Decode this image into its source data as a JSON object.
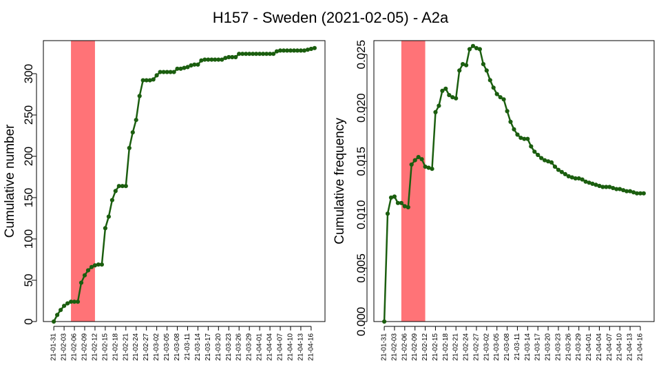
{
  "figure": {
    "title": "H157 - Sweden (2021-02-05) - A2a"
  },
  "colors": {
    "series": "#1b5e0f",
    "highlight": "#ff7377",
    "axis": "#000000",
    "background": "#ffffff"
  },
  "chart_data": [
    {
      "type": "line",
      "title": "",
      "xlabel": "",
      "ylabel": "Cumulative number",
      "grid": false,
      "legend": "none",
      "x_start": "2021-01-31",
      "x_end": "2021-04-17",
      "ylim": [
        0,
        340
      ],
      "yticks": [
        0,
        50,
        100,
        150,
        200,
        250,
        300
      ],
      "ytick_labels": [
        "0",
        "50",
        "100",
        "150",
        "200",
        "250",
        "300"
      ],
      "highlight_range": [
        "2021-02-05",
        "2021-02-12"
      ],
      "xtick_labels": [
        "21-01-31",
        "21-02-03",
        "21-02-06",
        "21-02-09",
        "21-02-12",
        "21-02-15",
        "21-02-18",
        "21-02-21",
        "21-02-24",
        "21-02-27",
        "21-03-02",
        "21-03-05",
        "21-03-08",
        "21-03-11",
        "21-03-14",
        "21-03-17",
        "21-03-20",
        "21-03-23",
        "21-03-26",
        "21-03-29",
        "21-04-01",
        "21-04-04",
        "21-04-07",
        "21-04-10",
        "21-04-13",
        "21-04-16"
      ],
      "series": [
        {
          "name": "",
          "values": [
            [
              "2021-01-31",
              0
            ],
            [
              "2021-02-01",
              8
            ],
            [
              "2021-02-02",
              14
            ],
            [
              "2021-02-03",
              19
            ],
            [
              "2021-02-04",
              22
            ],
            [
              "2021-02-05",
              24
            ],
            [
              "2021-02-06",
              24
            ],
            [
              "2021-02-07",
              24
            ],
            [
              "2021-02-08",
              47
            ],
            [
              "2021-02-09",
              56
            ],
            [
              "2021-02-10",
              62
            ],
            [
              "2021-02-11",
              66
            ],
            [
              "2021-02-12",
              68
            ],
            [
              "2021-02-13",
              69
            ],
            [
              "2021-02-14",
              69
            ],
            [
              "2021-02-15",
              113
            ],
            [
              "2021-02-16",
              127
            ],
            [
              "2021-02-17",
              147
            ],
            [
              "2021-02-18",
              158
            ],
            [
              "2021-02-19",
              164
            ],
            [
              "2021-02-20",
              164
            ],
            [
              "2021-02-21",
              164
            ],
            [
              "2021-02-22",
              210
            ],
            [
              "2021-02-23",
              229
            ],
            [
              "2021-02-24",
              244
            ],
            [
              "2021-02-25",
              273
            ],
            [
              "2021-02-26",
              292
            ],
            [
              "2021-02-27",
              292
            ],
            [
              "2021-02-28",
              292
            ],
            [
              "2021-03-01",
              293
            ],
            [
              "2021-03-02",
              298
            ],
            [
              "2021-03-03",
              302
            ],
            [
              "2021-03-04",
              302
            ],
            [
              "2021-03-05",
              302
            ],
            [
              "2021-03-06",
              302
            ],
            [
              "2021-03-07",
              302
            ],
            [
              "2021-03-08",
              306
            ],
            [
              "2021-03-09",
              306
            ],
            [
              "2021-03-10",
              307
            ],
            [
              "2021-03-11",
              308
            ],
            [
              "2021-03-12",
              310
            ],
            [
              "2021-03-13",
              311
            ],
            [
              "2021-03-14",
              311
            ],
            [
              "2021-03-15",
              316
            ],
            [
              "2021-03-16",
              317
            ],
            [
              "2021-03-17",
              317
            ],
            [
              "2021-03-18",
              317
            ],
            [
              "2021-03-19",
              317
            ],
            [
              "2021-03-20",
              317
            ],
            [
              "2021-03-21",
              317
            ],
            [
              "2021-03-22",
              319
            ],
            [
              "2021-03-23",
              320
            ],
            [
              "2021-03-24",
              320
            ],
            [
              "2021-03-25",
              320
            ],
            [
              "2021-03-26",
              324
            ],
            [
              "2021-03-27",
              324
            ],
            [
              "2021-03-28",
              324
            ],
            [
              "2021-03-29",
              324
            ],
            [
              "2021-03-30",
              324
            ],
            [
              "2021-03-31",
              324
            ],
            [
              "2021-04-01",
              324
            ],
            [
              "2021-04-02",
              324
            ],
            [
              "2021-04-03",
              324
            ],
            [
              "2021-04-04",
              324
            ],
            [
              "2021-04-05",
              324
            ],
            [
              "2021-04-06",
              327
            ],
            [
              "2021-04-07",
              328
            ],
            [
              "2021-04-08",
              328
            ],
            [
              "2021-04-09",
              328
            ],
            [
              "2021-04-10",
              328
            ],
            [
              "2021-04-11",
              328
            ],
            [
              "2021-04-12",
              328
            ],
            [
              "2021-04-13",
              328
            ],
            [
              "2021-04-14",
              328
            ],
            [
              "2021-04-15",
              329
            ],
            [
              "2021-04-16",
              330
            ],
            [
              "2021-04-17",
              331
            ]
          ]
        }
      ]
    },
    {
      "type": "line",
      "title": "",
      "xlabel": "",
      "ylabel": "Cumulative frequency",
      "grid": false,
      "legend": "none",
      "x_start": "2021-01-31",
      "x_end": "2021-04-17",
      "ylim": [
        0,
        0.0263
      ],
      "yticks": [
        0,
        0.005,
        0.01,
        0.015,
        0.02,
        0.025
      ],
      "ytick_labels": [
        "0.000",
        "0.005",
        "0.010",
        "0.015",
        "0.020",
        "0.025"
      ],
      "highlight_range": [
        "2021-02-05",
        "2021-02-12"
      ],
      "xtick_labels": [
        "21-01-31",
        "21-02-03",
        "21-02-06",
        "21-02-09",
        "21-02-12",
        "21-02-15",
        "21-02-18",
        "21-02-21",
        "21-02-24",
        "21-02-27",
        "21-03-02",
        "21-03-05",
        "21-03-08",
        "21-03-11",
        "21-03-14",
        "21-03-17",
        "21-03-20",
        "21-03-23",
        "21-03-26",
        "21-03-29",
        "21-04-01",
        "21-04-04",
        "21-04-07",
        "21-04-10",
        "21-04-13",
        "21-04-16"
      ],
      "series": [
        {
          "name": "",
          "values": [
            [
              "2021-01-31",
              0.0
            ],
            [
              "2021-02-01",
              0.0101
            ],
            [
              "2021-02-02",
              0.0116
            ],
            [
              "2021-02-03",
              0.0117
            ],
            [
              "2021-02-04",
              0.0111
            ],
            [
              "2021-02-05",
              0.0111
            ],
            [
              "2021-02-06",
              0.0108
            ],
            [
              "2021-02-07",
              0.0107
            ],
            [
              "2021-02-08",
              0.0147
            ],
            [
              "2021-02-09",
              0.0151
            ],
            [
              "2021-02-10",
              0.0154
            ],
            [
              "2021-02-11",
              0.0152
            ],
            [
              "2021-02-12",
              0.0145
            ],
            [
              "2021-02-13",
              0.0144
            ],
            [
              "2021-02-14",
              0.0143
            ],
            [
              "2021-02-15",
              0.0196
            ],
            [
              "2021-02-16",
              0.0202
            ],
            [
              "2021-02-17",
              0.0216
            ],
            [
              "2021-02-18",
              0.0218
            ],
            [
              "2021-02-19",
              0.0212
            ],
            [
              "2021-02-20",
              0.021
            ],
            [
              "2021-02-21",
              0.0209
            ],
            [
              "2021-02-22",
              0.0235
            ],
            [
              "2021-02-23",
              0.0241
            ],
            [
              "2021-02-24",
              0.024
            ],
            [
              "2021-02-25",
              0.0255
            ],
            [
              "2021-02-26",
              0.0258
            ],
            [
              "2021-02-27",
              0.0256
            ],
            [
              "2021-02-28",
              0.0255
            ],
            [
              "2021-03-01",
              0.0241
            ],
            [
              "2021-03-02",
              0.0235
            ],
            [
              "2021-03-03",
              0.0226
            ],
            [
              "2021-03-04",
              0.0219
            ],
            [
              "2021-03-05",
              0.0213
            ],
            [
              "2021-03-06",
              0.021
            ],
            [
              "2021-03-07",
              0.0208
            ],
            [
              "2021-03-08",
              0.0197
            ],
            [
              "2021-03-09",
              0.0187
            ],
            [
              "2021-03-10",
              0.018
            ],
            [
              "2021-03-11",
              0.0175
            ],
            [
              "2021-03-12",
              0.0172
            ],
            [
              "2021-03-13",
              0.0171
            ],
            [
              "2021-03-14",
              0.0171
            ],
            [
              "2021-03-15",
              0.0164
            ],
            [
              "2021-03-16",
              0.0159
            ],
            [
              "2021-03-17",
              0.0156
            ],
            [
              "2021-03-18",
              0.0153
            ],
            [
              "2021-03-19",
              0.0151
            ],
            [
              "2021-03-20",
              0.015
            ],
            [
              "2021-03-21",
              0.0149
            ],
            [
              "2021-03-22",
              0.0145
            ],
            [
              "2021-03-23",
              0.0142
            ],
            [
              "2021-03-24",
              0.014
            ],
            [
              "2021-03-25",
              0.0138
            ],
            [
              "2021-03-26",
              0.0136
            ],
            [
              "2021-03-27",
              0.0135
            ],
            [
              "2021-03-28",
              0.0134
            ],
            [
              "2021-03-29",
              0.0134
            ],
            [
              "2021-03-30",
              0.0133
            ],
            [
              "2021-03-31",
              0.0131
            ],
            [
              "2021-04-01",
              0.013
            ],
            [
              "2021-04-02",
              0.0129
            ],
            [
              "2021-04-03",
              0.0128
            ],
            [
              "2021-04-04",
              0.0127
            ],
            [
              "2021-04-05",
              0.0126
            ],
            [
              "2021-04-06",
              0.0126
            ],
            [
              "2021-04-07",
              0.0126
            ],
            [
              "2021-04-08",
              0.0125
            ],
            [
              "2021-04-09",
              0.0124
            ],
            [
              "2021-04-10",
              0.0124
            ],
            [
              "2021-04-11",
              0.0123
            ],
            [
              "2021-04-12",
              0.0122
            ],
            [
              "2021-04-13",
              0.0122
            ],
            [
              "2021-04-14",
              0.0121
            ],
            [
              "2021-04-15",
              0.012
            ],
            [
              "2021-04-16",
              0.012
            ],
            [
              "2021-04-17",
              0.012
            ]
          ]
        }
      ]
    }
  ]
}
